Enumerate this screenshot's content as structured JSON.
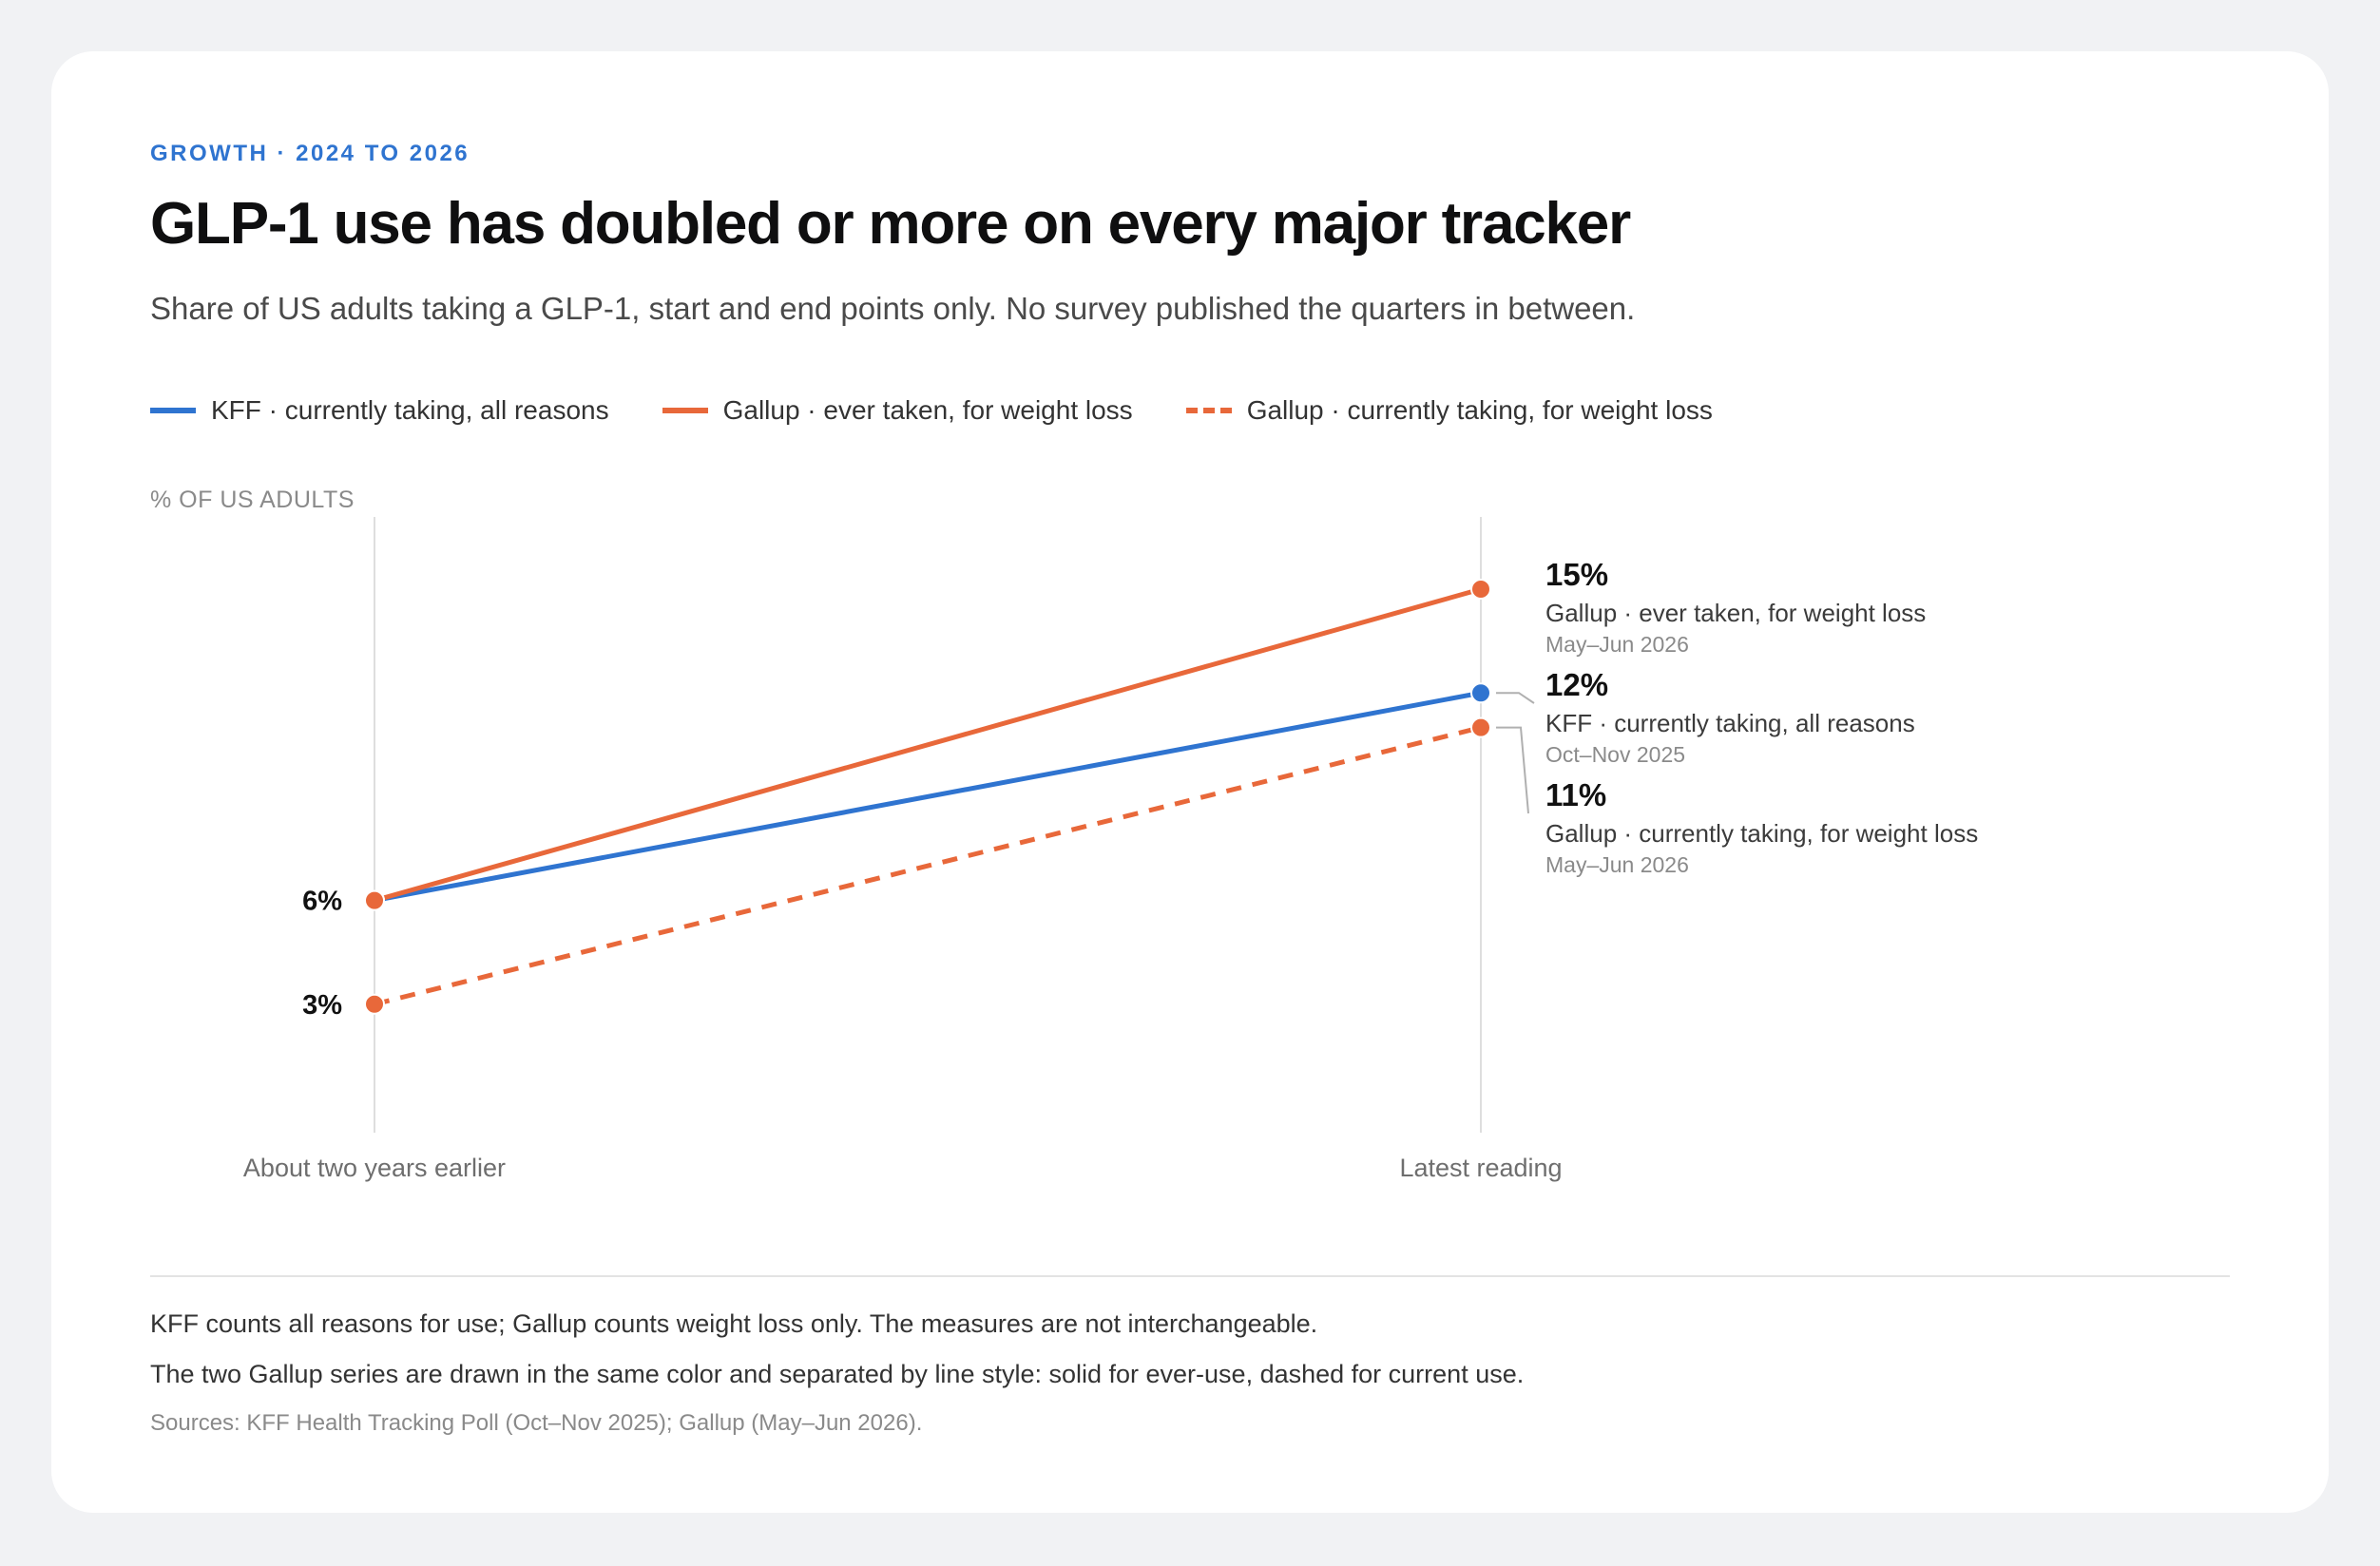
{
  "header": {
    "eyebrow": "GROWTH · 2024 TO 2026",
    "title": "GLP-1 use has doubled or more on every major tracker",
    "subtitle": "Share of US adults taking a GLP-1, start and end points only. No survey published the quarters in between."
  },
  "colors": {
    "blue": "#2f74d0",
    "orange": "#e8683a",
    "axis": "#dedede",
    "leader": "#b0b0b0"
  },
  "chart_data": {
    "type": "line",
    "ylabel": "% OF US ADULTS",
    "categories": [
      "About two years earlier",
      "Latest reading"
    ],
    "ylim": [
      0,
      17.8
    ],
    "grid": false,
    "legend_position": "top",
    "series": [
      {
        "name": "KFF · currently taking, all reasons",
        "values": [
          6,
          12
        ],
        "color": "#2f74d0",
        "style": "solid",
        "start_label": "6%",
        "end_label": {
          "value": "12%",
          "name": "KFF · currently taking, all reasons",
          "date": "Oct–Nov 2025"
        }
      },
      {
        "name": "Gallup · ever taken, for weight loss",
        "values": [
          6,
          15
        ],
        "color": "#e8683a",
        "style": "solid",
        "start_label": "",
        "end_label": {
          "value": "15%",
          "name": "Gallup · ever taken, for weight loss",
          "date": "May–Jun 2026"
        }
      },
      {
        "name": "Gallup · currently taking, for weight loss",
        "values": [
          3,
          11
        ],
        "color": "#e8683a",
        "style": "dashed",
        "start_label": "3%",
        "end_label": {
          "value": "11%",
          "name": "Gallup · currently taking, for weight loss",
          "date": "May–Jun 2026"
        }
      }
    ]
  },
  "footer": {
    "notes": [
      "KFF counts all reasons for use; Gallup counts weight loss only. The measures are not interchangeable.",
      "The two Gallup series are drawn in the same color and separated by line style: solid for ever-use, dashed for current use."
    ],
    "source": "Sources: KFF Health Tracking Poll (Oct–Nov 2025); Gallup (May–Jun 2026)."
  }
}
